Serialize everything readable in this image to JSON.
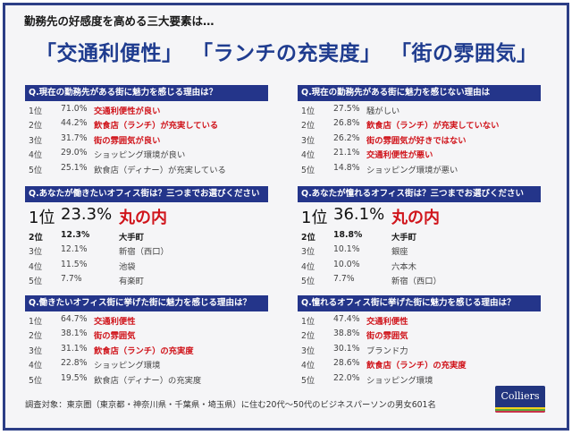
{
  "kicker": "勤務先の好感度を高める三大要素は…",
  "headline": [
    "「交通利便性」",
    "「ランチの充実度」",
    "「街の雰囲気」"
  ],
  "colors": {
    "navy": "#24358a",
    "highlight": "#d0141b",
    "background": "#f5f5f7"
  },
  "panels": [
    {
      "question": "Q.現在の勤務先がある街に魅力を感じる理由は？",
      "rows": [
        {
          "rank": "1位",
          "pct": "71.0%",
          "label": "交通利便性が良い",
          "highlight": true
        },
        {
          "rank": "2位",
          "pct": "44.2%",
          "label": "飲食店（ランチ）が充実している",
          "highlight": true
        },
        {
          "rank": "3位",
          "pct": "31.7%",
          "label": "街の雰囲気が良い",
          "highlight": true
        },
        {
          "rank": "4位",
          "pct": "29.0%",
          "label": "ショッピング環境が良い"
        },
        {
          "rank": "5位",
          "pct": "25.1%",
          "label": "飲食店（ディナー）が充実している"
        }
      ]
    },
    {
      "question": "Q.現在の勤務先がある街に魅力を感じない理由は",
      "rows": [
        {
          "rank": "1位",
          "pct": "27.5%",
          "label": "騒がしい"
        },
        {
          "rank": "2位",
          "pct": "26.8%",
          "label": "飲食店（ランチ）が充実していない",
          "highlight": true
        },
        {
          "rank": "3位",
          "pct": "26.2%",
          "label": "街の雰囲気が好きではない",
          "highlight": true
        },
        {
          "rank": "4位",
          "pct": "21.1%",
          "label": "交通利便性が悪い",
          "highlight": true
        },
        {
          "rank": "5位",
          "pct": "14.8%",
          "label": "ショッピング環境が悪い"
        }
      ]
    },
    {
      "question": "Q.あなたが働きたいオフィス街は？三つまでお選びください",
      "wide": true,
      "rows": [
        {
          "rank": "1位",
          "pct": "23.3%",
          "label": "丸の内",
          "top": true
        },
        {
          "rank": "2位",
          "pct": "12.3%",
          "label": "大手町",
          "bold": true
        },
        {
          "rank": "3位",
          "pct": "12.1%",
          "label": "新宿（西口）"
        },
        {
          "rank": "4位",
          "pct": "11.5%",
          "label": "池袋"
        },
        {
          "rank": "5位",
          "pct": "7.7%",
          "label": "有楽町"
        }
      ]
    },
    {
      "question": "Q.あなたが憧れるオフィス街は？三つまでお選びください",
      "wide": true,
      "rows": [
        {
          "rank": "1位",
          "pct": "36.1%",
          "label": "丸の内",
          "top": true
        },
        {
          "rank": "2位",
          "pct": "18.8%",
          "label": "大手町",
          "bold": true
        },
        {
          "rank": "3位",
          "pct": "10.1%",
          "label": "銀座"
        },
        {
          "rank": "4位",
          "pct": "10.0%",
          "label": "六本木"
        },
        {
          "rank": "5位",
          "pct": "7.7%",
          "label": "新宿（西口）"
        }
      ]
    },
    {
      "question": "Q.働きたいオフィス街に挙げた街に魅力を感じる理由は？",
      "rows": [
        {
          "rank": "1位",
          "pct": "64.7%",
          "label": "交通利便性",
          "highlight": true
        },
        {
          "rank": "2位",
          "pct": "38.1%",
          "label": "街の雰囲気",
          "highlight": true
        },
        {
          "rank": "3位",
          "pct": "31.1%",
          "label": "飲食店（ランチ）の充実度",
          "highlight": true
        },
        {
          "rank": "4位",
          "pct": "22.8%",
          "label": "ショッピング環境"
        },
        {
          "rank": "5位",
          "pct": "19.5%",
          "label": "飲食店（ディナー）の充実度"
        }
      ]
    },
    {
      "question": "Q.憧れるオフィス街に挙げた街に魅力を感じる理由は？",
      "rows": [
        {
          "rank": "1位",
          "pct": "47.4%",
          "label": "交通利便性",
          "highlight": true
        },
        {
          "rank": "2位",
          "pct": "38.8%",
          "label": "街の雰囲気",
          "highlight": true
        },
        {
          "rank": "3位",
          "pct": "30.1%",
          "label": "ブランド力"
        },
        {
          "rank": "4位",
          "pct": "28.6%",
          "label": "飲食店（ランチ）の充実度",
          "highlight": true
        },
        {
          "rank": "5位",
          "pct": "22.0%",
          "label": "ショッピング環境"
        }
      ]
    }
  ],
  "footer": "調査対象：東京圏（東京都・神奈川県・千葉県・埼玉県）に住む20代〜50代のビジネスパーソンの男女601名",
  "logo": {
    "text": "Colliers",
    "stripes": [
      "#f2d21b",
      "#5aa83c",
      "#c8324a"
    ]
  }
}
